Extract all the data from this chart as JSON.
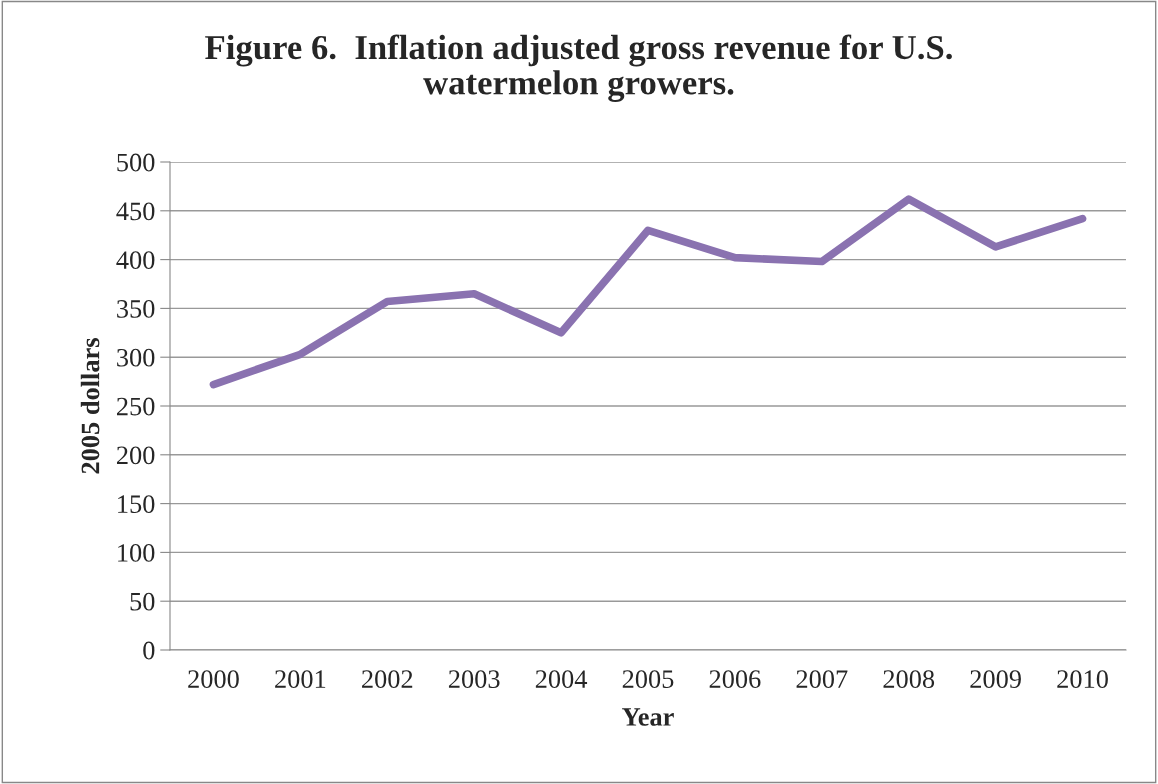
{
  "chart_data": {
    "type": "line",
    "title": "Figure 6.  Inflation adjusted gross revenue for U.S.\nwatermelon growers.",
    "xlabel": "Year",
    "ylabel": "2005 dollars",
    "categories": [
      "2000",
      "2001",
      "2002",
      "2003",
      "2004",
      "2005",
      "2006",
      "2007",
      "2008",
      "2009",
      "2010"
    ],
    "series": [
      {
        "color": "#8a72b0",
        "values": [
          272,
          303,
          357,
          365,
          325,
          430,
          402,
          398,
          462,
          413,
          442
        ]
      }
    ],
    "ylim": [
      0,
      500
    ],
    "yticks": [
      0,
      50,
      100,
      150,
      200,
      250,
      300,
      350,
      400,
      450,
      500
    ],
    "grid": "y",
    "legend": false,
    "marker": "none",
    "line_style": "solid"
  }
}
